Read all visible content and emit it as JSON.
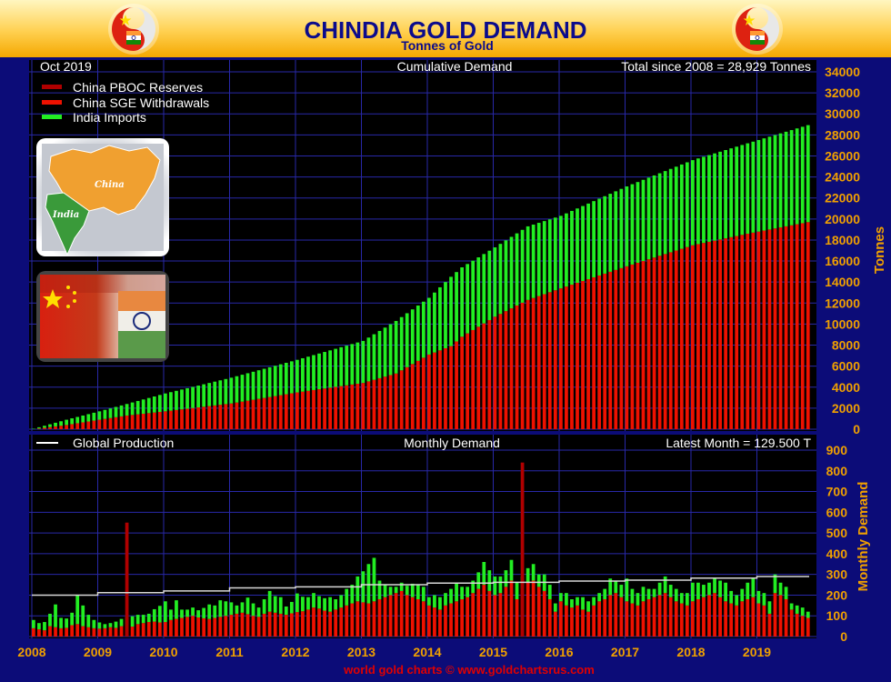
{
  "header": {
    "title": "CHINDIA GOLD DEMAND",
    "subtitle": "Tonnes of Gold"
  },
  "top_panel": {
    "date_label": "Oct  2019",
    "center_label": "Cumulative Demand",
    "total_label": "Total since 2008 = 28,929 Tonnes",
    "axis_title": "Tonnes",
    "map_labels": {
      "china": "China",
      "india": "India"
    },
    "legend": [
      {
        "label": "China PBOC Reserves",
        "color": "#b00000"
      },
      {
        "label": "China SGE Withdrawals",
        "color": "#ee1100"
      },
      {
        "label": "India Imports",
        "color": "#22ee22"
      }
    ]
  },
  "bottom_panel": {
    "legend_label": "Global Production",
    "center_label": "Monthly Demand",
    "latest_label": "Latest Month = 129.500 T",
    "axis_title": "Monthly Demand"
  },
  "footer": "world gold charts © www.goldchartsrus.com",
  "colors": {
    "background": "#0c0c78",
    "plot_bg": "#000000",
    "grid": "#2828a8",
    "pboc": "#b00000",
    "sge": "#ee1100",
    "india": "#22ee22",
    "production": "#d8d8d8",
    "tick_text": "#f0a000",
    "header_bg": "#ffc838"
  },
  "chart_data": [
    {
      "type": "bar",
      "title": "Cumulative Demand",
      "ylabel": "Tonnes",
      "ylim": [
        0,
        34000
      ],
      "y_ticks": [
        0,
        2000,
        4000,
        6000,
        8000,
        10000,
        12000,
        14000,
        16000,
        18000,
        20000,
        22000,
        24000,
        26000,
        28000,
        30000,
        32000,
        34000
      ],
      "x_ticks": [
        "2008",
        "2009",
        "2010",
        "2011",
        "2012",
        "2013",
        "2014",
        "2015",
        "2016",
        "2017",
        "2018",
        "2019"
      ],
      "grid": true,
      "legend_position": "top-left",
      "stacked": true,
      "series_anchor_points": {
        "month_index": [
          0,
          6,
          12,
          17,
          24,
          36,
          48,
          60,
          66,
          72,
          76,
          78,
          84,
          90,
          96,
          108,
          120,
          130,
          141
        ],
        "china_cumulative": [
          0,
          400,
          900,
          1300,
          1700,
          2450,
          3500,
          4400,
          5300,
          7100,
          7900,
          8800,
          10700,
          12300,
          13400,
          15500,
          17500,
          18600,
          19700
        ],
        "total_cumulative": [
          40,
          900,
          1700,
          2400,
          3400,
          4900,
          6600,
          8400,
          10300,
          12500,
          14500,
          15400,
          17300,
          19300,
          20300,
          23100,
          25600,
          27200,
          28929
        ]
      }
    },
    {
      "type": "bar",
      "title": "Monthly Demand",
      "ylabel": "Monthly Demand",
      "ylim": [
        0,
        900
      ],
      "y_ticks": [
        0,
        100,
        200,
        300,
        400,
        500,
        600,
        700,
        800,
        900
      ],
      "x_ticks": [
        "2008",
        "2009",
        "2010",
        "2011",
        "2012",
        "2013",
        "2014",
        "2015",
        "2016",
        "2017",
        "2018",
        "2019"
      ],
      "months": 142,
      "series": [
        {
          "name": "China PBOC Reserves",
          "values_note": "spikes",
          "spikes": [
            {
              "month_index": 17,
              "value": 550
            },
            {
              "month_index": 89,
              "value": 840
            }
          ]
        },
        {
          "name": "China SGE Withdrawals",
          "values": [
            40,
            35,
            30,
            50,
            45,
            40,
            42,
            55,
            60,
            50,
            45,
            40,
            38,
            40,
            45,
            42,
            50,
            55,
            48,
            60,
            65,
            70,
            72,
            68,
            70,
            80,
            85,
            90,
            95,
            100,
            92,
            88,
            85,
            90,
            95,
            100,
            105,
            110,
            115,
            108,
            100,
            95,
            110,
            120,
            115,
            110,
            105,
            112,
            118,
            122,
            130,
            140,
            135,
            125,
            120,
            130,
            140,
            150,
            160,
            170,
            165,
            160,
            170,
            180,
            190,
            200,
            210,
            220,
            200,
            190,
            180,
            170,
            150,
            140,
            130,
            150,
            160,
            170,
            180,
            190,
            210,
            230,
            250,
            220,
            200,
            210,
            240,
            270,
            180,
            230,
            260,
            270,
            240,
            220,
            180,
            120,
            170,
            150,
            140,
            150,
            130,
            120,
            150,
            170,
            180,
            200,
            210,
            190,
            170,
            160,
            150,
            170,
            180,
            190,
            200,
            210,
            190,
            170,
            160,
            150,
            170,
            180,
            190,
            200,
            210,
            190,
            170,
            160,
            150,
            170,
            180,
            190,
            160,
            150,
            110,
            210,
            200,
            180,
            130,
            110,
            100,
            90
          ]
        },
        {
          "name": "India Imports",
          "values": [
            40,
            30,
            40,
            60,
            110,
            50,
            45,
            60,
            140,
            100,
            60,
            40,
            30,
            20,
            20,
            30,
            35,
            40,
            50,
            45,
            40,
            40,
            60,
            80,
            100,
            50,
            90,
            40,
            35,
            40,
            35,
            50,
            70,
            60,
            80,
            70,
            60,
            40,
            50,
            80,
            60,
            45,
            70,
            100,
            80,
            80,
            40,
            55,
            90,
            70,
            60,
            70,
            60,
            60,
            70,
            50,
            60,
            80,
            90,
            120,
            150,
            190,
            210,
            90,
            60,
            40,
            30,
            40,
            45,
            65,
            70,
            70,
            40,
            60,
            60,
            60,
            70,
            90,
            60,
            50,
            60,
            80,
            110,
            100,
            90,
            80,
            80,
            100,
            80,
            60,
            70,
            80,
            60,
            80,
            70,
            40,
            40,
            60,
            40,
            40,
            60,
            50,
            40,
            40,
            50,
            80,
            60,
            60,
            110,
            70,
            60,
            70,
            50,
            40,
            60,
            80,
            60,
            60,
            50,
            60,
            90,
            80,
            60,
            60,
            70,
            80,
            90,
            60,
            50,
            60,
            80,
            90,
            60,
            60,
            60,
            90,
            60,
            60,
            30,
            40,
            40,
            30
          ]
        },
        {
          "name": "Global Production",
          "type": "line",
          "values_by_year": [
            200,
            212,
            220,
            235,
            240,
            250,
            258,
            262,
            268,
            272,
            282,
            290
          ]
        }
      ]
    }
  ]
}
